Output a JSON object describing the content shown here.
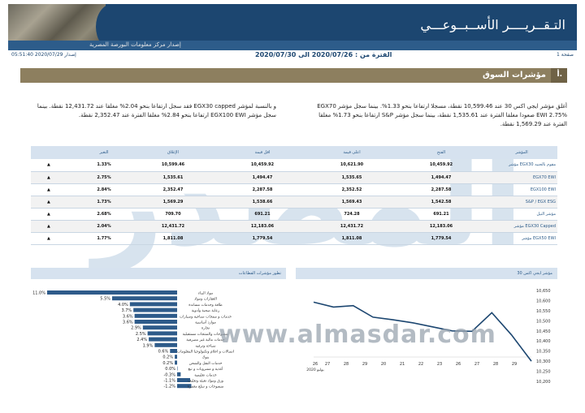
{
  "header": {
    "title": "التـقــريــــر الأســبــوعـــي",
    "subtitle": "إصدار مركز معلومات البورصة المصرية"
  },
  "meta": {
    "issue": "إصدار 2020/07/29 05:51:40",
    "period": "الفترة من : 2020/07/26 الى 2020/07/30",
    "page": "صفحة 1"
  },
  "section": {
    "number": "أ.",
    "title": "مؤشرات السوق"
  },
  "paragraphs": {
    "right": "أغلق مؤشر ايجي اكس 30 عند 10,599.46 نقطة، مسجلا ارتفاعا بنحو 1.33%. بينما سجل مؤشر EGX70 EWI 2.75% صعودا مغلقا الفترة عند 1,535.61 نقطة، بينما سجل مؤشر S&P ارتفاعا بنحو 1.73% مغلقا الفترة عند 1,569.29 نقطة.",
    "left": "و بالنسبة لمؤشر EGX30 capped فقد سجل ارتفاعا بنحو 2.04% مغلقا عند 12,431.72 نقطة. بينما سجل مؤشر EGX100 EWI ارتفاعا بنحو 2.84% مغلقا الفترة عند 2,352.47 نقطة."
  },
  "watermark": {
    "logo_text": "المصدر",
    "url": "www.almasdar.com"
  },
  "table": {
    "headers": [
      "المؤشر",
      "الفتح",
      "اعلى قيمة",
      "اقل قيمة",
      "الإغلاق",
      "التغير",
      ""
    ],
    "rows": [
      {
        "name": "مؤشر EGX30 مقوم بالجنيه",
        "open": "10,459.92",
        "high": "10,621.90",
        "low": "10,459.92",
        "close": "10,599.46",
        "change": "1.33%",
        "arrow": "▲"
      },
      {
        "name": "EGX70 EWI",
        "open": "1,494.47",
        "high": "1,535.65",
        "low": "1,494.47",
        "close": "1,535.61",
        "change": "2.75%",
        "arrow": "▲"
      },
      {
        "name": "EGX100 EWI",
        "open": "2,287.58",
        "high": "2,352.52",
        "low": "2,287.58",
        "close": "2,352.47",
        "change": "2.84%",
        "arrow": "▲"
      },
      {
        "name": "S&P / EGX ESG",
        "open": "1,542.58",
        "high": "1,569.43",
        "low": "1,538.66",
        "close": "1,569.29",
        "change": "1.73%",
        "arrow": "▲"
      },
      {
        "name": "مؤشر النيل",
        "open": "691.21",
        "high": "724.28",
        "low": "691.21",
        "close": "709.70",
        "change": "2.68%",
        "arrow": "▲"
      },
      {
        "name": "مؤشر EGX30 Capped",
        "open": "12,183.06",
        "high": "12,431.72",
        "low": "12,183.06",
        "close": "12,431.72",
        "change": "2.04%",
        "arrow": "▲"
      },
      {
        "name": "مؤشر EGX50 EWI",
        "open": "1,779.54",
        "high": "1,811.08",
        "low": "1,779.54",
        "close": "1,811.08",
        "change": "1.77%",
        "arrow": "▲"
      }
    ]
  },
  "panels": {
    "sectors_title": "تطور مؤشرات القطاعات",
    "line_title": "مؤشر ايجي اكس 30"
  },
  "chart_data": [
    {
      "type": "bar",
      "categories": [
        "مواد البناء",
        "العقارات ومواد",
        "طاقة وخدمات مساندة",
        "رعاية صحية وأدوية",
        "خدمات و منتجات صناعية وسيارات",
        "موارد أساسية",
        "تجارة",
        "منسوجات والمنتجات مستقبلية",
        "خدمات مالية غير مصرفية",
        "سياحة وترفيه",
        "اتصالات و اعلام وتكنولوجيا المعلومات",
        "بنوك",
        "خدمات النقل والشحن",
        "أغذية و مشروبات و تبغ",
        "خدمات تعليمية",
        "ورق ومواد تعبئة وتغليف",
        "منسوجات و سلع معمرة"
      ],
      "values": [
        11.0,
        5.5,
        4.0,
        3.7,
        3.6,
        3.6,
        2.9,
        2.5,
        2.4,
        1.9,
        0.6,
        0.2,
        0.2,
        0.0,
        -0.3,
        -1.1,
        -1.2
      ],
      "labels": [
        "11.0%",
        "5.5%",
        "4.0%",
        "3.7%",
        "3.6%",
        "3.6%",
        "2.9%",
        "2.5%",
        "2.4%",
        "1.9%",
        "0.6%",
        "0.2%",
        "0.2%",
        "0.0%",
        "-0.3%",
        "-1.1%",
        "-1.2%"
      ],
      "colors": {
        "positive": "#2e5b8a",
        "negative": "#2e5b8a"
      }
    },
    {
      "type": "line",
      "x": [
        "26",
        "27",
        "28",
        "29",
        "20",
        "21",
        "22",
        "23",
        "26",
        "27",
        "28",
        "29"
      ],
      "x_labels": [
        "29",
        "28",
        "27",
        "26",
        "23",
        "22",
        "21",
        "20",
        "29",
        "28",
        "27",
        "26"
      ],
      "x_year": "يوليو 2020",
      "values": [
        10592,
        10568,
        10575,
        10518,
        10505,
        10490,
        10470,
        10450,
        10448,
        10540,
        10430,
        10300
      ],
      "ylim": [
        10200,
        10650
      ],
      "yticks": [
        "10,650",
        "10,600",
        "10,550",
        "10,500",
        "10,450",
        "10,400",
        "10,350",
        "10,300",
        "10,250",
        "10,200"
      ],
      "color": "#1c4670"
    }
  ]
}
